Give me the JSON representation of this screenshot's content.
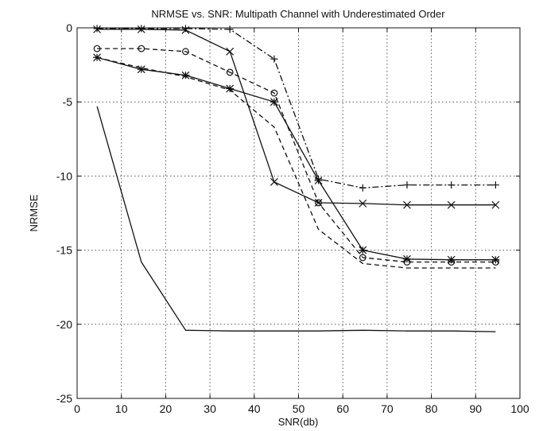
{
  "chart_data": {
    "type": "line",
    "title": "NRMSE vs. SNR: Multipath Channel with Underestimated Order",
    "xlabel": "SNR(db)",
    "ylabel": "NRMSE",
    "xlim": [
      0,
      100
    ],
    "ylim": [
      -25,
      0
    ],
    "xticks": [
      0,
      10,
      20,
      30,
      40,
      50,
      60,
      70,
      80,
      90,
      100
    ],
    "yticks": [
      0,
      -5,
      -10,
      -15,
      -20,
      -25
    ],
    "grid": "dotted",
    "legend": "none",
    "colors": {
      "line": "#111111",
      "grid": "#555555",
      "background": "#ffffff"
    },
    "series": [
      {
        "style": "solid",
        "marker": "none",
        "x": [
          4.5,
          14.5,
          24.5,
          34.5,
          44.5,
          54.5,
          64.5,
          74.5,
          84.5,
          94.5
        ],
        "y": [
          -5.3,
          -15.8,
          -20.4,
          -20.45,
          -20.45,
          -20.45,
          -20.4,
          -20.45,
          -20.45,
          -20.5
        ]
      },
      {
        "style": "solid",
        "marker": "star",
        "x": [
          4.5,
          14.5,
          24.5,
          34.5,
          44.5,
          54.5,
          64.5,
          74.5,
          84.5,
          94.5
        ],
        "y": [
          -2.0,
          -2.8,
          -3.2,
          -4.1,
          -5.0,
          -10.3,
          -15.0,
          -15.6,
          -15.65,
          -15.65
        ]
      },
      {
        "style": "solid",
        "marker": "x",
        "x": [
          4.5,
          14.5,
          24.5,
          34.5,
          44.5,
          54.5,
          64.5,
          74.5,
          84.5,
          94.5
        ],
        "y": [
          -0.1,
          -0.1,
          -0.15,
          -1.6,
          -10.4,
          -11.8,
          -11.85,
          -11.95,
          -11.95,
          -11.95
        ]
      },
      {
        "style": "dashdot",
        "marker": "plus",
        "x": [
          4.5,
          14.5,
          24.5,
          34.5,
          44.5,
          54.5,
          64.5,
          74.5,
          84.5,
          94.5
        ],
        "y": [
          -0.05,
          -0.05,
          -0.05,
          -0.1,
          -2.1,
          -10.2,
          -10.8,
          -10.6,
          -10.6,
          -10.6
        ]
      },
      {
        "style": "dashed",
        "marker": "circle",
        "x": [
          4.5,
          14.5,
          24.5,
          34.5,
          44.5,
          54.5,
          64.5,
          74.5,
          84.5,
          94.5
        ],
        "y": [
          -1.4,
          -1.4,
          -1.6,
          -3.0,
          -4.4,
          -11.8,
          -15.5,
          -15.8,
          -15.8,
          -15.8
        ]
      },
      {
        "style": "dashed",
        "marker": "none",
        "x": [
          4.5,
          14.5,
          24.5,
          34.5,
          44.5,
          54.5,
          64.5,
          74.5,
          84.5,
          94.5
        ],
        "y": [
          -2.0,
          -2.7,
          -3.3,
          -4.2,
          -6.7,
          -13.6,
          -15.9,
          -16.2,
          -16.2,
          -16.2
        ]
      }
    ]
  }
}
